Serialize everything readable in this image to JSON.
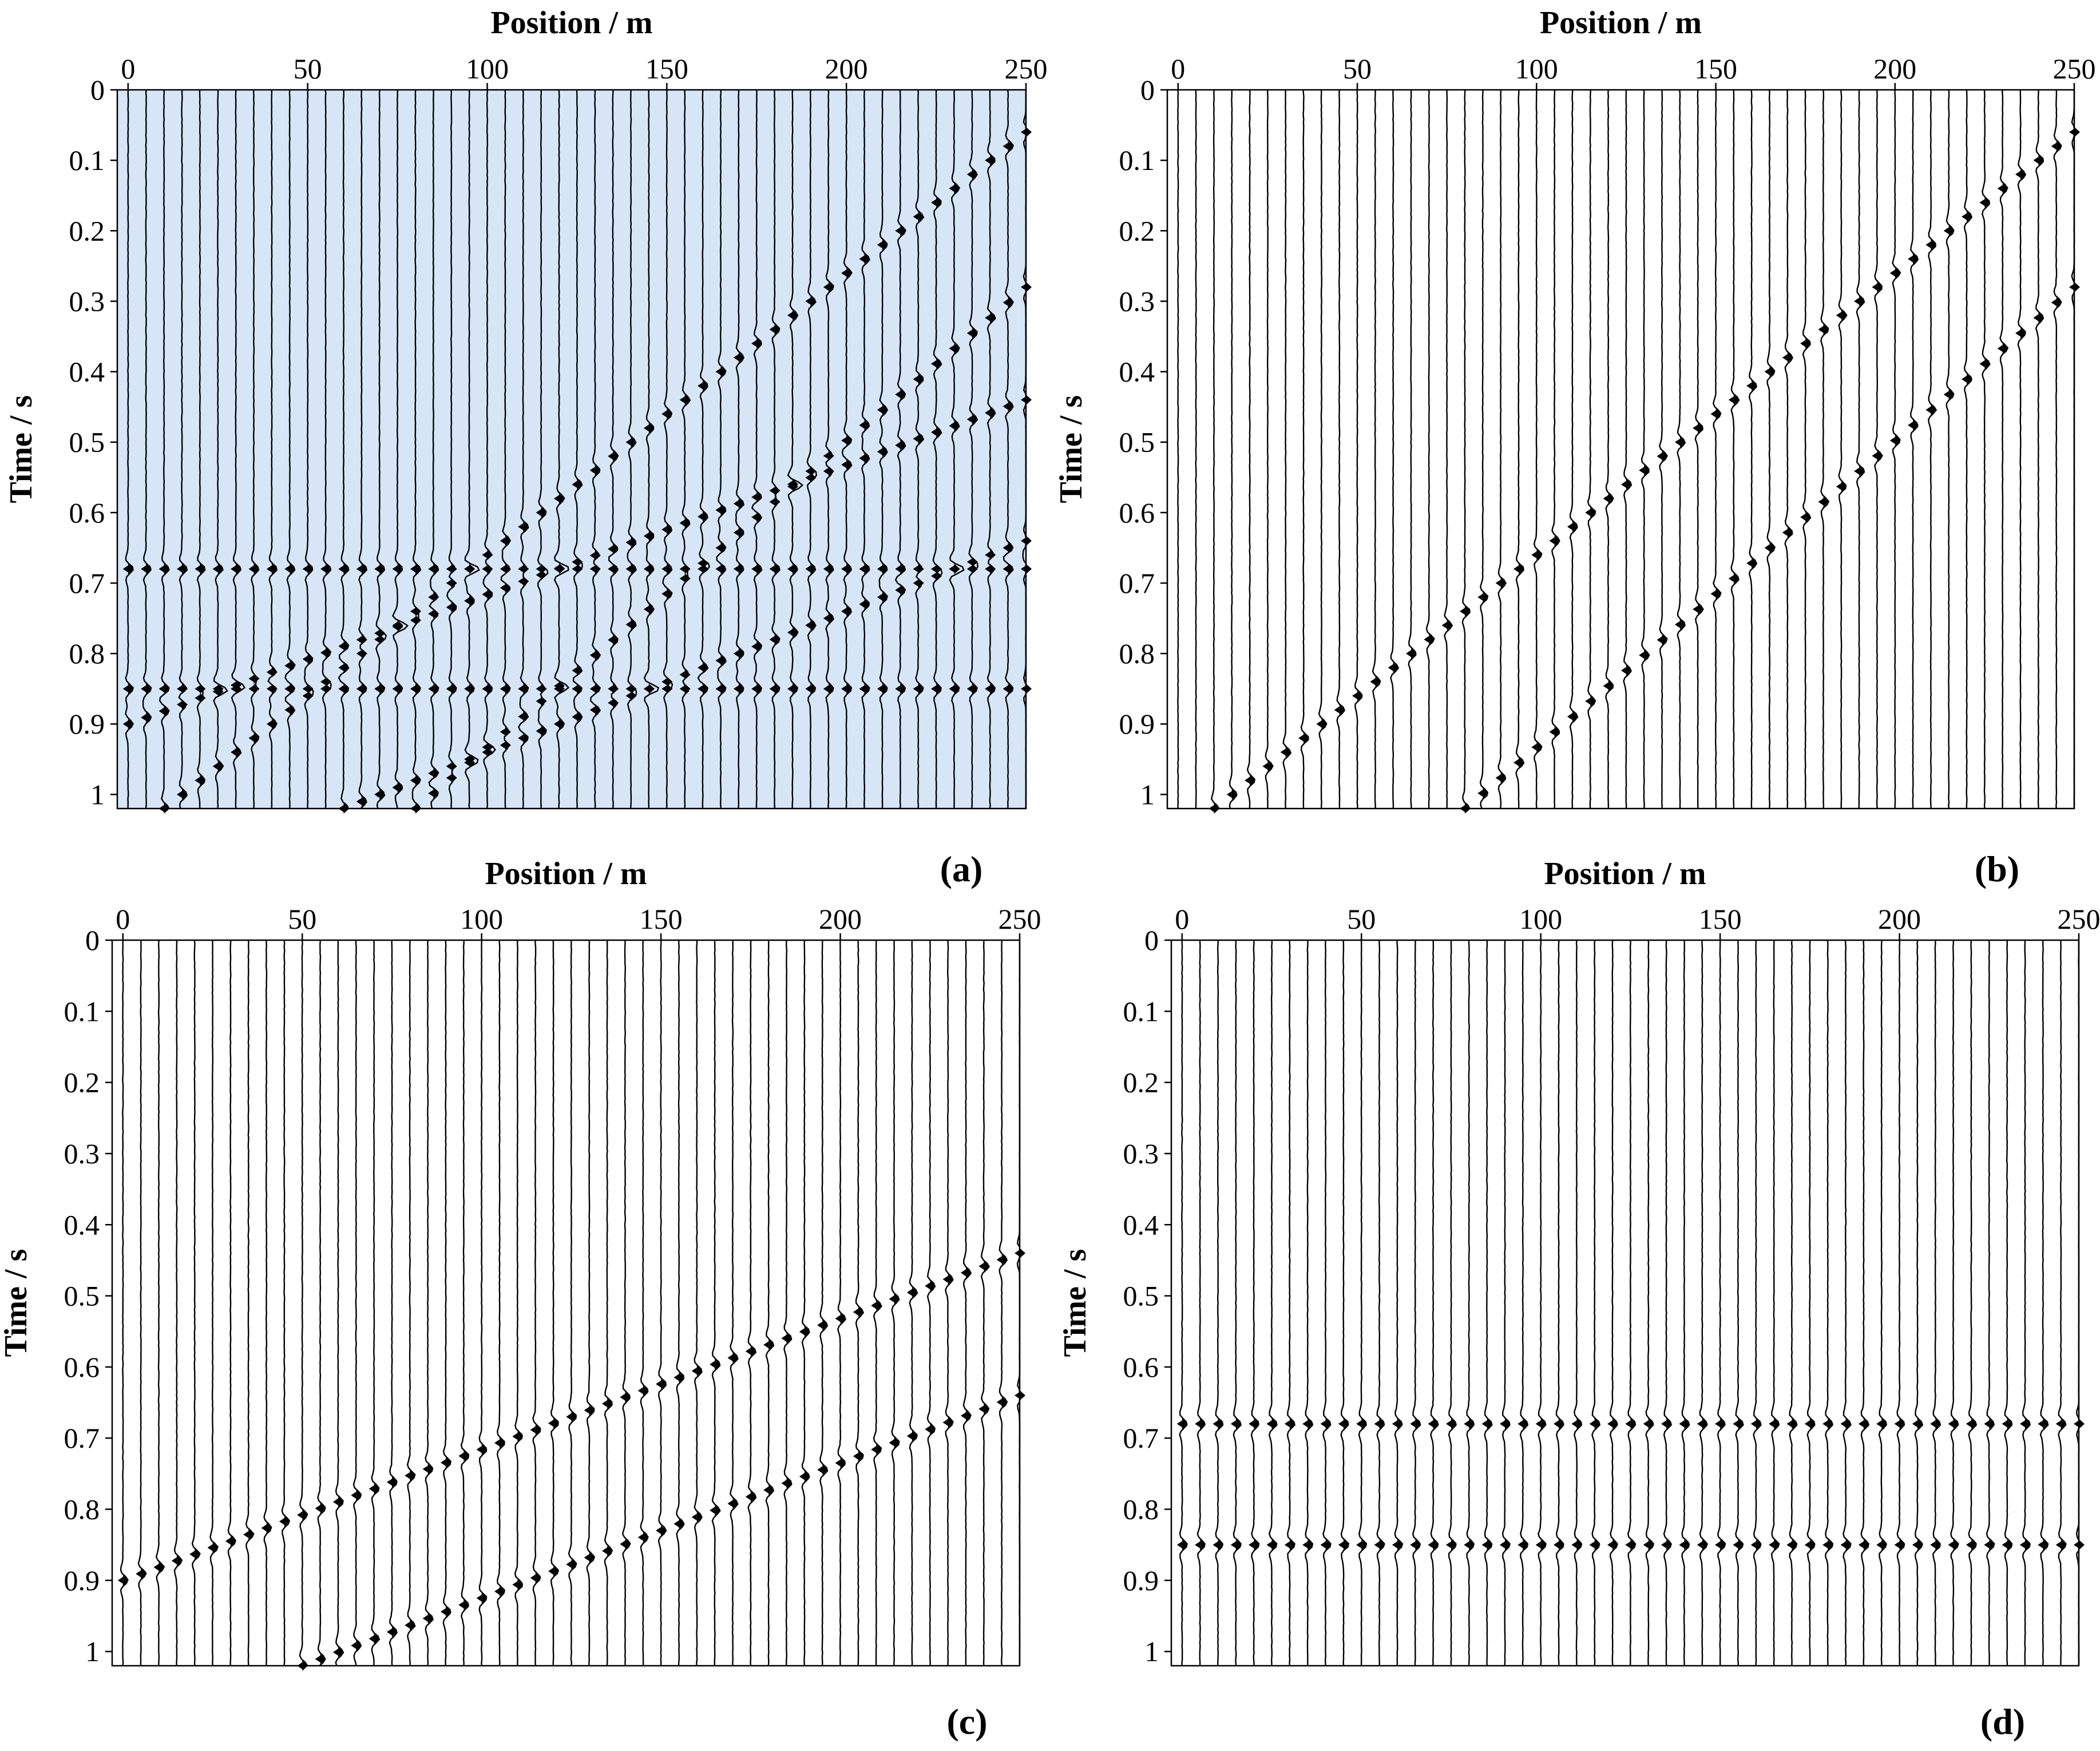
{
  "chart_data": [
    {
      "type": "seismic-wiggle",
      "panel_label": "(a)",
      "background": "#d6e6f7",
      "xlabel": "Position / m",
      "ylabel": "Time / s",
      "xticks": [
        "0",
        "50",
        "100",
        "150",
        "200",
        "250"
      ],
      "yticks": [
        "0",
        "0.1",
        "0.2",
        "0.3",
        "0.4",
        "0.5",
        "0.6",
        "0.7",
        "0.8",
        "0.9",
        "1"
      ],
      "xlim": [
        -3,
        250
      ],
      "ylim": [
        0,
        1.02
      ],
      "trace_spacing_m": 5,
      "events": [
        {
          "kind": "linear",
          "x0": 10,
          "t0": 1.02,
          "x1": 250,
          "t1": 0.06
        },
        {
          "kind": "linear",
          "x0": 80,
          "t0": 1.02,
          "x1": 250,
          "t1": 0.28
        },
        {
          "kind": "linear",
          "x0": 0,
          "t0": 0.9,
          "x1": 250,
          "t1": 0.44
        },
        {
          "kind": "linear",
          "x0": 60,
          "t0": 1.02,
          "x1": 250,
          "t1": 0.64
        },
        {
          "kind": "horizontal",
          "t": 0.68
        },
        {
          "kind": "horizontal",
          "t": 0.85
        }
      ]
    },
    {
      "type": "seismic-wiggle",
      "panel_label": "(b)",
      "background": "#ffffff",
      "xlabel": "Position / m",
      "ylabel": "Time / s",
      "xticks": [
        "0",
        "50",
        "100",
        "150",
        "200",
        "250"
      ],
      "yticks": [
        "0",
        "0.1",
        "0.2",
        "0.3",
        "0.4",
        "0.5",
        "0.6",
        "0.7",
        "0.8",
        "0.9",
        "1"
      ],
      "xlim": [
        -3,
        250
      ],
      "ylim": [
        0,
        1.02
      ],
      "trace_spacing_m": 5,
      "events": [
        {
          "kind": "linear",
          "x0": 10,
          "t0": 1.02,
          "x1": 250,
          "t1": 0.06
        },
        {
          "kind": "linear",
          "x0": 80,
          "t0": 1.02,
          "x1": 250,
          "t1": 0.28
        }
      ]
    },
    {
      "type": "seismic-wiggle",
      "panel_label": "(c)",
      "background": "#ffffff",
      "xlabel": "Position / m",
      "ylabel": "Time / s",
      "xticks": [
        "0",
        "50",
        "100",
        "150",
        "200",
        "250"
      ],
      "yticks": [
        "0",
        "0.1",
        "0.2",
        "0.3",
        "0.4",
        "0.5",
        "0.6",
        "0.7",
        "0.8",
        "0.9",
        "1"
      ],
      "xlim": [
        -3,
        250
      ],
      "ylim": [
        0,
        1.02
      ],
      "trace_spacing_m": 5,
      "events": [
        {
          "kind": "linear",
          "x0": 0,
          "t0": 0.9,
          "x1": 250,
          "t1": 0.44
        },
        {
          "kind": "linear",
          "x0": 50,
          "t0": 1.02,
          "x1": 250,
          "t1": 0.64
        }
      ]
    },
    {
      "type": "seismic-wiggle",
      "panel_label": "(d)",
      "background": "#ffffff",
      "xlabel": "Position / m",
      "ylabel": "Time / s",
      "xticks": [
        "0",
        "50",
        "100",
        "150",
        "200",
        "250"
      ],
      "yticks": [
        "0",
        "0.1",
        "0.2",
        "0.3",
        "0.4",
        "0.5",
        "0.6",
        "0.7",
        "0.8",
        "0.9",
        "1"
      ],
      "xlim": [
        -3,
        250
      ],
      "ylim": [
        0,
        1.02
      ],
      "trace_spacing_m": 5,
      "events": [
        {
          "kind": "horizontal",
          "t": 0.68
        },
        {
          "kind": "horizontal",
          "t": 0.85
        }
      ]
    }
  ]
}
